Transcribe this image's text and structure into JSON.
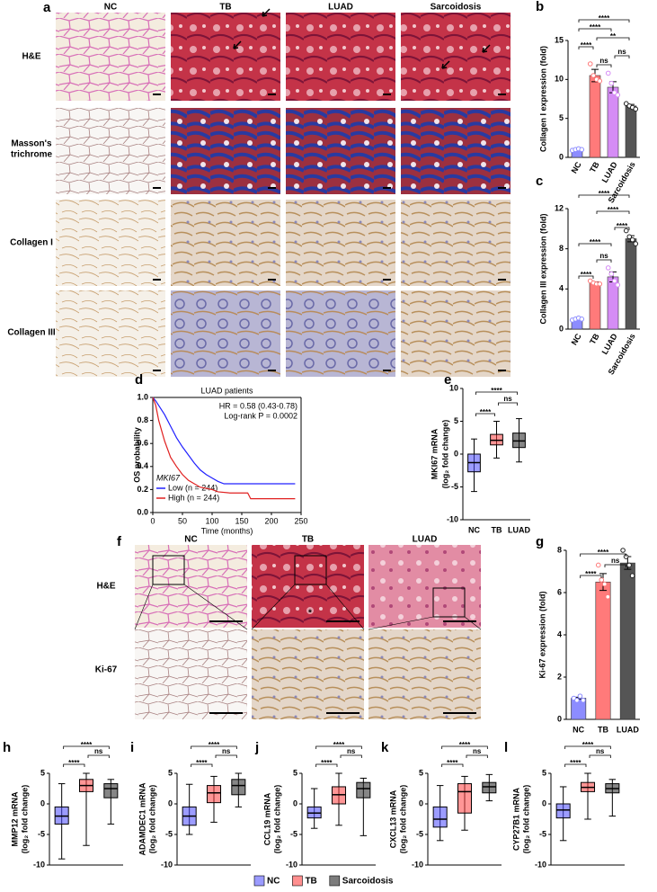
{
  "micrographs": [
    {
      "panel": "a",
      "columns": [
        "NC",
        "TB",
        "LUAD",
        "Sarcoidosis"
      ],
      "rows": [
        "H&E",
        "Masson's",
        "trichrome",
        "Collagen I",
        "Collagen III"
      ]
    },
    {
      "panel": "f",
      "columns": [
        "NC",
        "TB",
        "LUAD"
      ],
      "rows": [
        "H&E",
        "Ki-67"
      ],
      "marker": "*"
    }
  ],
  "chart_data": [
    {
      "type": "bar",
      "panel": "b",
      "ylabel": [
        "Collagen I expression (fold)"
      ],
      "categories": [
        "NC",
        "TB",
        "LUAD",
        "Sarcoidosis"
      ],
      "values": [
        1.0,
        10.5,
        9.0,
        6.6
      ],
      "errors": [
        0.1,
        0.8,
        0.7,
        0.2
      ],
      "points": [
        [
          0.9,
          1.0,
          1.1,
          1.0
        ],
        [
          12.0,
          10.5,
          10.0,
          9.8
        ],
        [
          10.8,
          9.5,
          8.3,
          8.0
        ],
        [
          6.9,
          6.6,
          6.4,
          6.2
        ]
      ],
      "colors": [
        "#8c8cff",
        "#ff7a7a",
        "#d58cf5",
        "#555555"
      ],
      "ylim": [
        0,
        15
      ],
      "yticks": [
        0,
        5,
        10,
        15
      ],
      "significance": [
        {
          "between": [
            "TB",
            "LUAD"
          ],
          "label": "ns"
        },
        {
          "between": [
            "LUAD",
            "Sarcoidosis"
          ],
          "label": "ns"
        },
        {
          "between": [
            "NC",
            "TB"
          ],
          "label": "****"
        },
        {
          "between": [
            "TB",
            "Sarcoidosis"
          ],
          "label": "**"
        },
        {
          "between": [
            "NC",
            "LUAD"
          ],
          "label": "****"
        },
        {
          "between": [
            "NC",
            "Sarcoidosis"
          ],
          "label": "****"
        }
      ]
    },
    {
      "type": "bar",
      "panel": "c",
      "ylabel": [
        "Collagen III expression (fold)"
      ],
      "categories": [
        "NC",
        "TB",
        "LUAD",
        "Sarcoidosis"
      ],
      "values": [
        1.0,
        4.6,
        5.2,
        9.0
      ],
      "errors": [
        0.05,
        0.1,
        0.5,
        0.3
      ],
      "points": [
        [
          0.9,
          1.0,
          1.1,
          1.0
        ],
        [
          4.8,
          4.6,
          4.5,
          4.5
        ],
        [
          6.1,
          5.5,
          4.8,
          4.4
        ],
        [
          9.8,
          9.2,
          8.9,
          8.5
        ]
      ],
      "colors": [
        "#8c8cff",
        "#ff7a7a",
        "#d58cf5",
        "#555555"
      ],
      "ylim": [
        0,
        12
      ],
      "yticks": [
        0,
        4,
        8,
        12
      ],
      "significance": [
        {
          "between": [
            "NC",
            "TB"
          ],
          "label": "****"
        },
        {
          "between": [
            "TB",
            "LUAD"
          ],
          "label": "ns"
        },
        {
          "between": [
            "NC",
            "LUAD"
          ],
          "label": "****"
        },
        {
          "between": [
            "LUAD",
            "Sarcoidosis"
          ],
          "label": "****"
        },
        {
          "between": [
            "TB",
            "Sarcoidosis"
          ],
          "label": "****"
        },
        {
          "between": [
            "NC",
            "Sarcoidosis"
          ],
          "label": "****"
        }
      ]
    },
    {
      "type": "line",
      "panel": "d",
      "title": "LUAD patients",
      "xlabel": "Time (months)",
      "ylabel": [
        "OS probability"
      ],
      "annotations": [
        "HR = 0.58 (0.43-0.78)",
        "Log-rank P = 0.0002"
      ],
      "legend_title": "MKI67",
      "series": [
        {
          "name": "Low (n = 244)",
          "color": "#2020ff",
          "x": [
            0,
            5,
            10,
            20,
            30,
            40,
            50,
            60,
            70,
            80,
            90,
            100,
            110,
            120,
            140,
            170,
            240
          ],
          "values": [
            1.0,
            0.97,
            0.93,
            0.85,
            0.75,
            0.65,
            0.57,
            0.5,
            0.43,
            0.37,
            0.33,
            0.3,
            0.27,
            0.25,
            0.25,
            0.25,
            0.25
          ]
        },
        {
          "name": "High (n = 244)",
          "color": "#e02020",
          "x": [
            0,
            5,
            10,
            20,
            30,
            40,
            50,
            60,
            70,
            80,
            100,
            110,
            130,
            160,
            165,
            240
          ],
          "values": [
            1.0,
            0.93,
            0.8,
            0.62,
            0.48,
            0.4,
            0.33,
            0.28,
            0.25,
            0.22,
            0.2,
            0.18,
            0.17,
            0.17,
            0.12,
            0.12
          ]
        }
      ],
      "xlim": [
        0,
        250
      ],
      "xticks": [
        0,
        50,
        100,
        150,
        200,
        250
      ],
      "ylim": [
        0,
        1
      ],
      "yticks": [
        {
          "value": 0,
          "label": "0.0"
        },
        0.2,
        0.4,
        0.6,
        0.8,
        {
          "value": 1,
          "label": "1.0"
        }
      ]
    },
    {
      "type": "box",
      "panel": "e",
      "ylabel": [
        "MKI67 mRNA",
        "(log₂ fold change)"
      ],
      "categories": [
        "NC",
        "TB",
        "LUAD"
      ],
      "boxes": [
        {
          "min": -5.7,
          "q1": -2.7,
          "median": -1.3,
          "q3": 0,
          "max": 2.3
        },
        {
          "min": -0.6,
          "q1": 1.4,
          "median": 2.1,
          "q3": 3.0,
          "max": 5.0
        },
        {
          "min": -1.2,
          "q1": 1.0,
          "median": 2.0,
          "q3": 3.2,
          "max": 5.4
        }
      ],
      "colors": [
        "#4a4aff",
        "#ff4040",
        "#222222"
      ],
      "ylim": [
        -10,
        10
      ],
      "yticks": [
        -10,
        -5,
        0,
        5,
        10
      ],
      "significance": [
        {
          "between": [
            "NC",
            "TB"
          ],
          "label": "****"
        },
        {
          "between": [
            "TB",
            "LUAD"
          ],
          "label": "ns"
        },
        {
          "between": [
            "NC",
            "LUAD"
          ],
          "label": "****"
        }
      ]
    },
    {
      "type": "bar",
      "panel": "g",
      "ylabel": [
        "Ki-67 expression (fold)"
      ],
      "categories": [
        "NC",
        "TB",
        "LUAD"
      ],
      "values": [
        1.0,
        6.5,
        7.4
      ],
      "errors": [
        0.05,
        0.4,
        0.3
      ],
      "points": [
        [
          1.0,
          0.9,
          1.1,
          0.9
        ],
        [
          7.3,
          6.6,
          6.4,
          5.8
        ],
        [
          8.0,
          7.7,
          7.3,
          6.8
        ]
      ],
      "colors": [
        "#8c8cff",
        "#ff7a7a",
        "#555555"
      ],
      "ylim": [
        0,
        8
      ],
      "yticks": [
        0,
        2,
        4,
        6,
        8
      ],
      "significance": [
        {
          "between": [
            "NC",
            "TB"
          ],
          "label": "****"
        },
        {
          "between": [
            "TB",
            "LUAD"
          ],
          "label": "ns"
        },
        {
          "between": [
            "NC",
            "LUAD"
          ],
          "label": "****"
        }
      ]
    },
    {
      "type": "box",
      "panel": "h",
      "ylabel": [
        "MMP12 mRNA",
        "(log₂ fold change)"
      ],
      "boxes": [
        {
          "min": -9,
          "q1": -3.3,
          "median": -2,
          "q3": -0.5,
          "max": 3.3
        },
        {
          "min": -6.8,
          "q1": 2,
          "median": 3,
          "q3": 4,
          "max": 5
        },
        {
          "min": -3.3,
          "q1": 1,
          "median": 2.5,
          "q3": 3.3,
          "max": 4
        }
      ],
      "colors": [
        "#4a4aff",
        "#ff4040",
        "#222222"
      ],
      "ylim": [
        -10,
        5
      ],
      "yticks": [
        -10,
        -5,
        0,
        5
      ],
      "significance": [
        {
          "between": [
            "NC",
            "TB"
          ],
          "label": "****"
        },
        {
          "between": [
            "TB",
            "Sarcoidosis"
          ],
          "label": "ns"
        },
        {
          "between": [
            "NC",
            "Sarcoidosis"
          ],
          "label": "****"
        }
      ]
    },
    {
      "type": "box",
      "panel": "i",
      "ylabel": [
        "ADAMDEC1 mRNA",
        "(log₂ fold change)"
      ],
      "boxes": [
        {
          "min": -5,
          "q1": -3.5,
          "median": -2,
          "q3": -0.5,
          "max": 3.2
        },
        {
          "min": -3,
          "q1": 0.2,
          "median": 1.8,
          "q3": 3,
          "max": 4.5
        },
        {
          "min": -0.5,
          "q1": 1.5,
          "median": 3,
          "q3": 4,
          "max": 5
        }
      ],
      "colors": [
        "#4a4aff",
        "#ff4040",
        "#222222"
      ],
      "ylim": [
        -10,
        5
      ],
      "yticks": [
        -10,
        -5,
        0,
        5
      ],
      "significance": [
        {
          "between": [
            "NC",
            "TB"
          ],
          "label": "****"
        },
        {
          "between": [
            "TB",
            "Sarcoidosis"
          ],
          "label": "ns"
        },
        {
          "between": [
            "NC",
            "Sarcoidosis"
          ],
          "label": "****"
        }
      ]
    },
    {
      "type": "box",
      "panel": "j",
      "ylabel": [
        "CCL19 mRNA",
        "(log₂ fold change)"
      ],
      "boxes": [
        {
          "min": -4,
          "q1": -2.3,
          "median": -1.5,
          "q3": -0.5,
          "max": 2.5
        },
        {
          "min": -3.5,
          "q1": 0,
          "median": 1.5,
          "q3": 2.8,
          "max": 5
        },
        {
          "min": -5.2,
          "q1": 1,
          "median": 2.5,
          "q3": 3.5,
          "max": 4.2
        }
      ],
      "colors": [
        "#4a4aff",
        "#ff4040",
        "#222222"
      ],
      "ylim": [
        -10,
        5
      ],
      "yticks": [
        -10,
        -5,
        0,
        5
      ],
      "significance": [
        {
          "between": [
            "NC",
            "TB"
          ],
          "label": "****"
        },
        {
          "between": [
            "TB",
            "Sarcoidosis"
          ],
          "label": "ns"
        },
        {
          "between": [
            "NC",
            "Sarcoidosis"
          ],
          "label": "****"
        }
      ]
    },
    {
      "type": "box",
      "panel": "k",
      "ylabel": [
        "CXCL13 mRNA",
        "(log₂ fold change)"
      ],
      "boxes": [
        {
          "min": -6,
          "q1": -3.8,
          "median": -2.5,
          "q3": -0.5,
          "max": 3
        },
        {
          "min": -4.3,
          "q1": -1.5,
          "median": 2,
          "q3": 3.3,
          "max": 4.5
        },
        {
          "min": 0.5,
          "q1": 1.8,
          "median": 2.8,
          "q3": 3.5,
          "max": 4.8
        }
      ],
      "colors": [
        "#4a4aff",
        "#ff4040",
        "#222222"
      ],
      "ylim": [
        -10,
        5
      ],
      "yticks": [
        -10,
        -5,
        0,
        5
      ],
      "significance": [
        {
          "between": [
            "NC",
            "TB"
          ],
          "label": "****"
        },
        {
          "between": [
            "TB",
            "Sarcoidosis"
          ],
          "label": "ns"
        },
        {
          "between": [
            "NC",
            "Sarcoidosis"
          ],
          "label": "****"
        }
      ]
    },
    {
      "type": "box",
      "panel": "l",
      "ylabel": [
        "CYP27B1 mRNA",
        "(log₂ fold change)"
      ],
      "boxes": [
        {
          "min": -6,
          "q1": -2.3,
          "median": -1,
          "q3": 0,
          "max": 2.8
        },
        {
          "min": -2.5,
          "q1": 2,
          "median": 2.7,
          "q3": 3.5,
          "max": 5
        },
        {
          "min": -2,
          "q1": 1.8,
          "median": 2.5,
          "q3": 3.3,
          "max": 4
        }
      ],
      "colors": [
        "#4a4aff",
        "#ff4040",
        "#222222"
      ],
      "ylim": [
        -10,
        5
      ],
      "yticks": [
        -10,
        -5,
        0,
        5
      ],
      "significance": [
        {
          "between": [
            "NC",
            "TB"
          ],
          "label": "****"
        },
        {
          "between": [
            "TB",
            "Sarcoidosis"
          ],
          "label": "ns"
        },
        {
          "between": [
            "NC",
            "Sarcoidosis"
          ],
          "label": "****"
        }
      ]
    }
  ],
  "legend": {
    "items": [
      {
        "name": "NC",
        "color": "#7070ff"
      },
      {
        "name": "TB",
        "color": "#ff6060"
      },
      {
        "name": "Sarcoidosis",
        "color": "#444444"
      }
    ]
  }
}
